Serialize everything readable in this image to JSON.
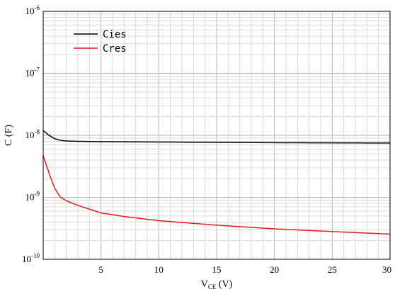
{
  "chart_data": {
    "type": "line",
    "x_scale": "linear",
    "y_scale": "log",
    "xlim": [
      0,
      30
    ],
    "ylim": [
      1e-10,
      1e-06
    ],
    "grid": true,
    "legend_position": "top-left",
    "ylabel": "C (F)",
    "xlabel": {
      "main_before": "V",
      "subscript": "CE",
      "main_after": " (V)"
    },
    "x_ticks": [
      {
        "value": 5,
        "label": "5"
      },
      {
        "value": 10,
        "label": "10"
      },
      {
        "value": 15,
        "label": "15"
      },
      {
        "value": 20,
        "label": "20"
      },
      {
        "value": 25,
        "label": "25"
      },
      {
        "value": 30,
        "label": "30"
      }
    ],
    "y_ticks": [
      {
        "value": 1e-06,
        "base": "10",
        "exponent": "-6"
      },
      {
        "value": 1e-07,
        "base": "10",
        "exponent": "-7"
      },
      {
        "value": 1e-08,
        "base": "10",
        "exponent": "-8"
      },
      {
        "value": 1e-09,
        "base": "10",
        "exponent": "-9"
      },
      {
        "value": 1e-10,
        "base": "10",
        "exponent": "-10"
      }
    ],
    "series": [
      {
        "name": "Cies",
        "color": "#000000",
        "points": [
          [
            0,
            1.2e-08
          ],
          [
            0.5,
            1e-08
          ],
          [
            1,
            8.8e-09
          ],
          [
            1.5,
            8.3e-09
          ],
          [
            2,
            8.1e-09
          ],
          [
            3,
            8e-09
          ],
          [
            5,
            7.9e-09
          ],
          [
            10,
            7.8e-09
          ],
          [
            15,
            7.7e-09
          ],
          [
            20,
            7.6e-09
          ],
          [
            25,
            7.55e-09
          ],
          [
            30,
            7.5e-09
          ]
        ]
      },
      {
        "name": "Cres",
        "color": "#e8191b",
        "points": [
          [
            0,
            4.7e-09
          ],
          [
            0.3,
            3.2e-09
          ],
          [
            0.6,
            2.2e-09
          ],
          [
            1,
            1.4e-09
          ],
          [
            1.5,
            1e-09
          ],
          [
            2,
            8.8e-10
          ],
          [
            3,
            7.4e-10
          ],
          [
            5,
            5.6e-10
          ],
          [
            7,
            4.9e-10
          ],
          [
            10,
            4.2e-10
          ],
          [
            15,
            3.55e-10
          ],
          [
            20,
            3.1e-10
          ],
          [
            25,
            2.8e-10
          ],
          [
            30,
            2.55e-10
          ]
        ]
      }
    ]
  }
}
